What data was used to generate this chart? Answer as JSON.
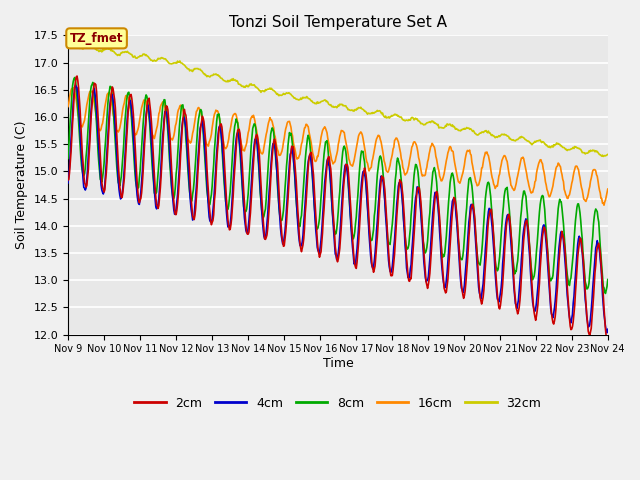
{
  "title": "Tonzi Soil Temperature Set A",
  "xlabel": "Time",
  "ylabel": "Soil Temperature (C)",
  "ylim": [
    12.0,
    17.5
  ],
  "xlim": [
    0,
    15
  ],
  "background_color": "#f0f0f0",
  "plot_bg_color": "#e8e8e8",
  "grid_color": "#ffffff",
  "colors": {
    "2cm": "#cc0000",
    "4cm": "#0000cc",
    "8cm": "#00aa00",
    "16cm": "#ff8800",
    "32cm": "#cccc00"
  },
  "legend_label": "TZ_fmet",
  "x_tick_labels": [
    "Nov 9",
    "Nov 10",
    "Nov 11",
    "Nov 12",
    "Nov 13",
    "Nov 14",
    "Nov 15",
    "Nov 16",
    "Nov 17",
    "Nov 18",
    "Nov 19",
    "Nov 20",
    "Nov 21",
    "Nov 22",
    "Nov 23",
    "Nov 24"
  ],
  "n_days": 15,
  "n_points": 720,
  "yticks": [
    12.0,
    12.5,
    13.0,
    13.5,
    14.0,
    14.5,
    15.0,
    15.5,
    16.0,
    16.5,
    17.0,
    17.5
  ]
}
